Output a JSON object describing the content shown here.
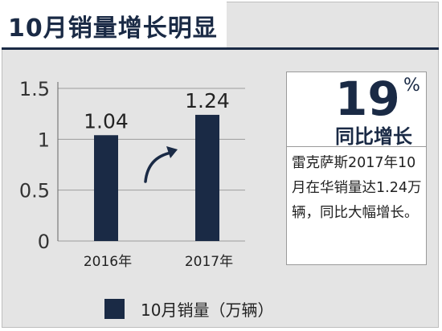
{
  "title": "10月销量增长明显",
  "stat": {
    "number": "19",
    "percent": "%",
    "label": "同比增长",
    "description": "雷克萨斯2017年10月在华销量达1.24万辆，同比大幅增长。"
  },
  "legend": {
    "label": "10月销量（万辆）"
  },
  "colors": {
    "bar": "#1a2a45",
    "background": "#e4e4e4"
  },
  "chart_data": {
    "type": "bar",
    "categories": [
      "2016年",
      "2017年"
    ],
    "series": [
      {
        "name": "10月销量（万辆）",
        "values": [
          1.04,
          1.24
        ]
      }
    ],
    "data_labels": [
      "1.04",
      "1.24"
    ],
    "y_ticks": [
      0,
      0.5,
      1,
      1.5
    ],
    "y_tick_labels": [
      "0",
      "0.5",
      "1",
      "1.5"
    ],
    "ylim": [
      0,
      1.5
    ],
    "grid": true,
    "annotation": "growth-arrow",
    "legend_position": "bottom"
  }
}
